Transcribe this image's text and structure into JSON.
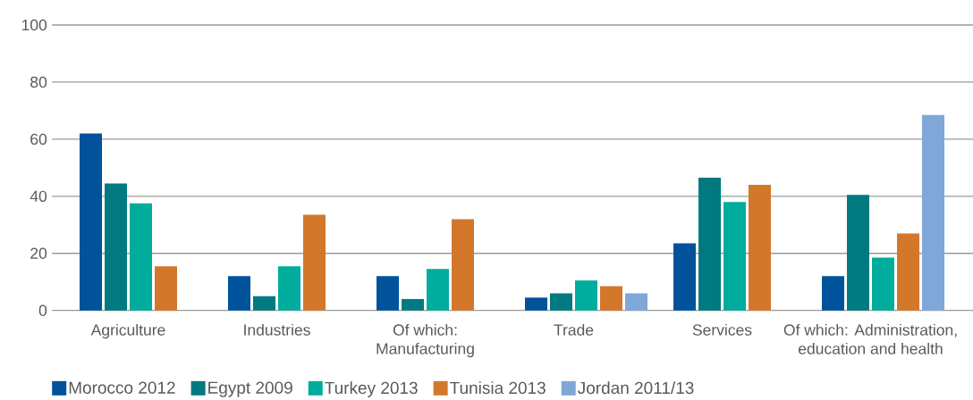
{
  "chart_data": {
    "type": "bar",
    "categories": [
      "Agriculture",
      "Industries",
      "Of which: Manufacturing",
      "Trade",
      "Services",
      "Of which: Administration, education and health"
    ],
    "series": [
      {
        "name": "Morocco 2012",
        "color": "#00529b",
        "values": [
          62,
          12,
          12,
          4.5,
          23.5,
          12
        ]
      },
      {
        "name": "Egypt 2009",
        "color": "#007a80",
        "values": [
          44.5,
          5,
          4,
          6,
          46.5,
          40.5
        ]
      },
      {
        "name": "Turkey 2013",
        "color": "#00ad9c",
        "values": [
          37.5,
          15.5,
          14.5,
          10.5,
          38,
          18.5
        ]
      },
      {
        "name": "Tunisia 2013",
        "color": "#d3772b",
        "values": [
          15.5,
          33.5,
          32,
          8.5,
          44,
          27
        ]
      },
      {
        "name": "Jordan 2011/13",
        "color": "#7fa7d8",
        "values": [
          null,
          null,
          null,
          6,
          null,
          68.5
        ]
      }
    ],
    "ylim": [
      0,
      100
    ],
    "yticks": [
      0,
      20,
      40,
      60,
      80,
      100
    ],
    "grid": "y",
    "legend": "bottom left"
  }
}
